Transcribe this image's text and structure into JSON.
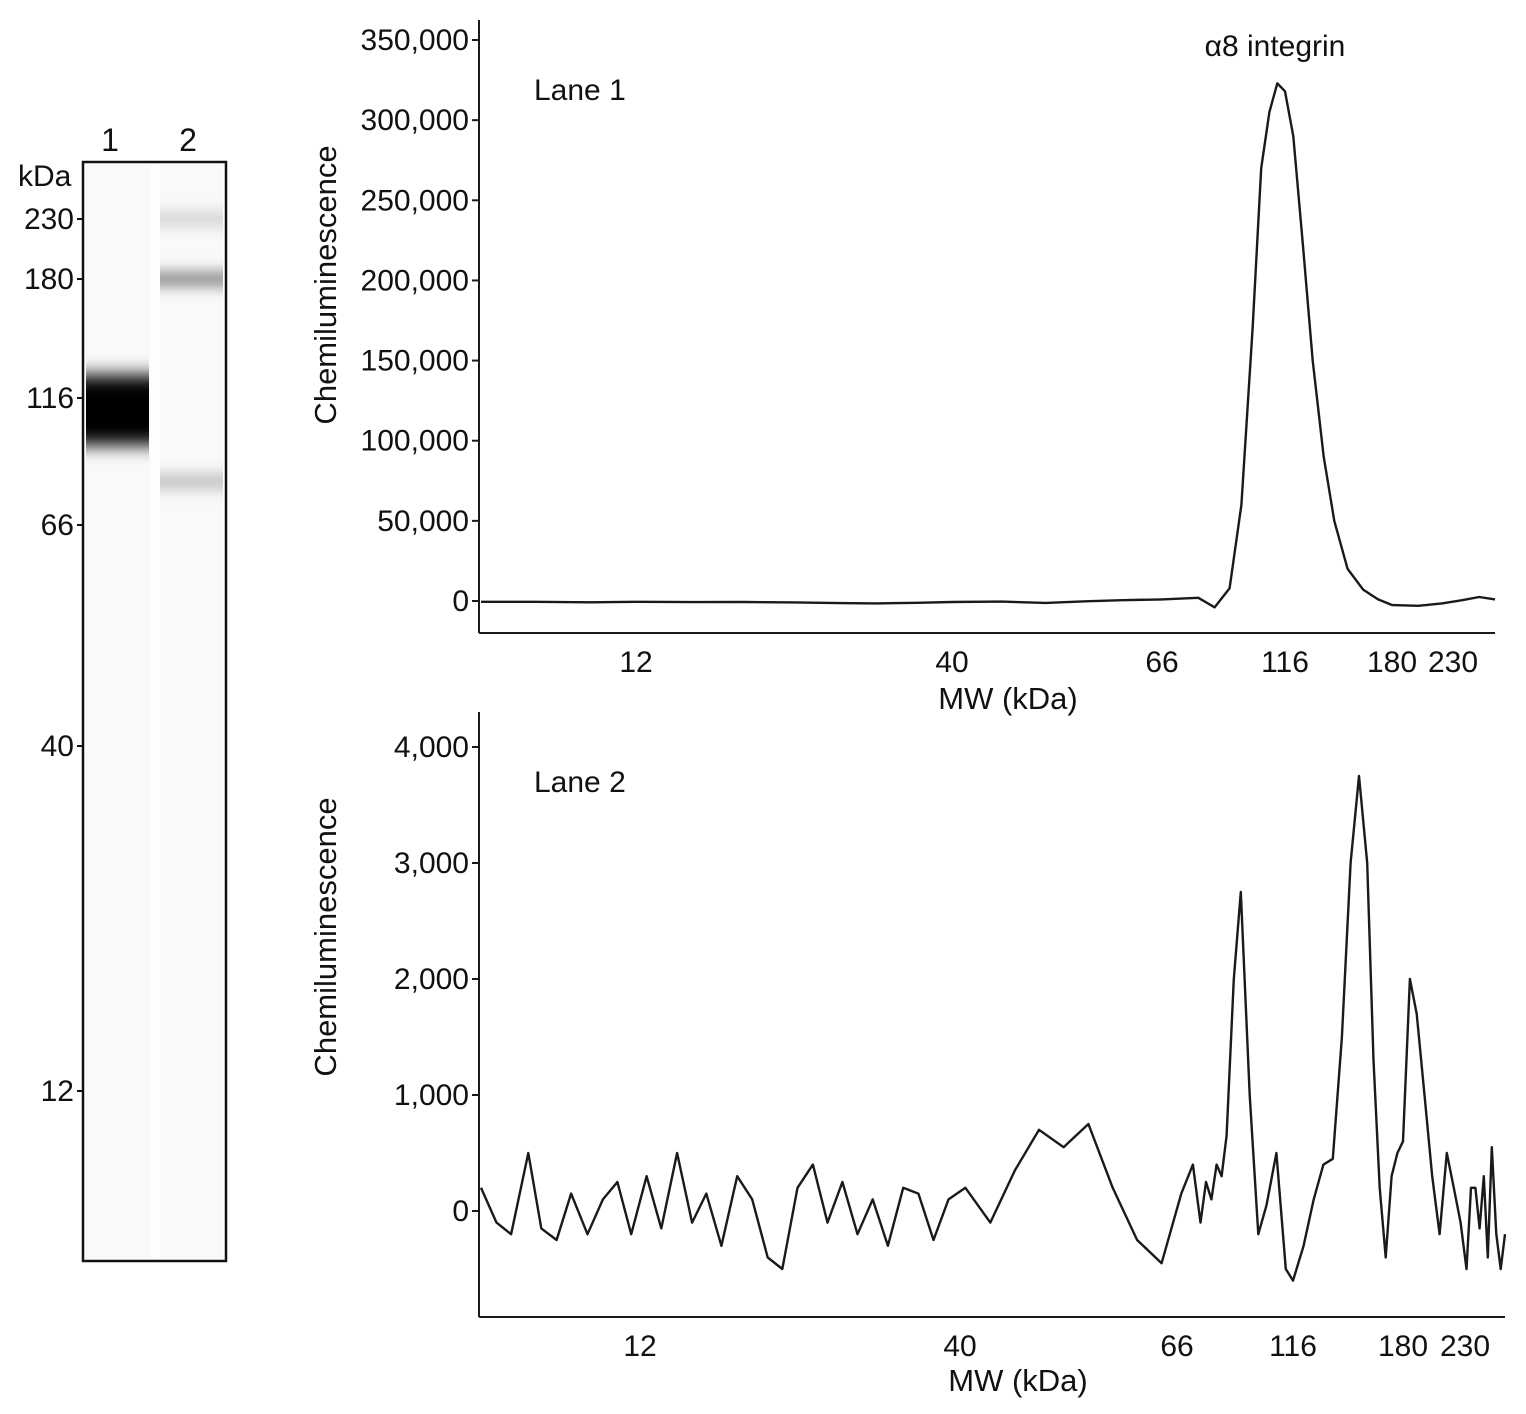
{
  "gel": {
    "lanes": [
      "1",
      "2"
    ],
    "unit_label": "kDa",
    "markers": [
      "230",
      "180",
      "116",
      "66",
      "40",
      "12"
    ],
    "bands": [
      {
        "lane": "1",
        "mw_kda": 116,
        "intensity": 1.0
      },
      {
        "lane": "2",
        "mw_kda": 230,
        "intensity": 0.08
      },
      {
        "lane": "2",
        "mw_kda": 180,
        "intensity": 0.22
      },
      {
        "lane": "2",
        "mw_kda": 80,
        "intensity": 0.12
      }
    ]
  },
  "chart_data": [
    {
      "type": "line",
      "panel_label": "Lane 1",
      "annotation": "α8 integrin",
      "xlabel": "MW (kDa)",
      "ylabel": "Chemiluminescence",
      "x_ticks": [
        "12",
        "40",
        "66",
        "116",
        "180",
        "230"
      ],
      "y_ticks": [
        "0",
        "50,000",
        "100,000",
        "150,000",
        "200,000",
        "250,000",
        "300,000",
        "350,000"
      ],
      "ylim": [
        -20000,
        360000
      ],
      "x_scale": "log",
      "series": [
        {
          "x": [
            6.5,
            8,
            10,
            12,
            15,
            18,
            22,
            26,
            30,
            35,
            40,
            45,
            50,
            55,
            60,
            66,
            72,
            78,
            84,
            90,
            95,
            100,
            104,
            108,
            112,
            116,
            120,
            125,
            130,
            136,
            142,
            150,
            160,
            170,
            180,
            200,
            220,
            240,
            260,
            280
          ],
          "y": [
            -500,
            -500,
            -800,
            -500,
            -700,
            -600,
            -900,
            -1300,
            -1500,
            -1100,
            -600,
            -400,
            -1200,
            -200,
            500,
            1000,
            1500,
            2000,
            -4000,
            8000,
            60000,
            170000,
            270000,
            305000,
            323000,
            318000,
            290000,
            220000,
            150000,
            90000,
            50000,
            20000,
            7000,
            1000,
            -2500,
            -3000,
            -1500,
            500,
            2500,
            1000
          ]
        }
      ]
    },
    {
      "type": "line",
      "panel_label": "Lane 2",
      "xlabel": "MW (kDa)",
      "ylabel": "Chemiluminescence",
      "x_ticks": [
        "12",
        "40",
        "66",
        "116",
        "180",
        "230"
      ],
      "y_ticks": [
        "0",
        "1,000",
        "2,000",
        "3,000",
        "4,000"
      ],
      "ylim": [
        -940,
        4080
      ],
      "x_scale": "log",
      "series": [
        {
          "x": [
            6.5,
            6.9,
            7.3,
            7.8,
            8.2,
            8.7,
            9.2,
            9.8,
            10.4,
            11.0,
            11.6,
            12.3,
            13.0,
            13.8,
            14.6,
            15.4,
            16.3,
            17.3,
            18.3,
            19.4,
            20.5,
            21.7,
            23.0,
            24.3,
            25.7,
            27.2,
            28.8,
            30.5,
            32.3,
            34.2,
            36.2,
            38.3,
            40.5,
            42.9,
            45.4,
            48.0,
            50.8,
            53.8,
            56.9,
            60.2,
            63.7,
            67.4,
            71.3,
            74.0,
            76.0,
            78.0,
            80.0,
            82.0,
            84.0,
            87.0,
            90.0,
            94.0,
            98.0,
            102.0,
            107.0,
            112.0,
            116.0,
            121.0,
            126.0,
            131.0,
            136.0,
            141.0,
            146.0,
            151.0,
            156.0,
            160.0,
            164.0,
            168.0,
            172.0,
            176.0,
            180.0,
            185.0,
            190.0,
            196.0,
            202.0,
            208.0,
            214.0,
            220.0,
            226.0,
            232.0,
            238.0,
            244.0,
            250.0,
            256.0,
            262.0,
            268.0,
            275.0,
            282.0,
            289.0
          ],
          "y": [
            200,
            -100,
            -200,
            500,
            -150,
            -250,
            150,
            -200,
            100,
            250,
            -200,
            300,
            -150,
            500,
            -100,
            150,
            -300,
            300,
            100,
            -400,
            -500,
            200,
            400,
            -100,
            250,
            -200,
            100,
            -300,
            200,
            150,
            -250,
            100,
            200,
            -100,
            350,
            700,
            550,
            750,
            200,
            -250,
            -450,
            150,
            400,
            -100,
            250,
            100,
            400,
            300,
            650,
            2000,
            2750,
            1000,
            -200,
            50,
            500,
            -500,
            -600,
            -300,
            100,
            400,
            450,
            1500,
            3000,
            3750,
            3000,
            1300,
            200,
            -400,
            300,
            500,
            600,
            2000,
            1700,
            1000,
            300,
            -200,
            500,
            200,
            -100,
            -500,
            200,
            200,
            -150,
            300,
            -400,
            550,
            -200,
            -500,
            -200
          ]
        }
      ]
    }
  ]
}
